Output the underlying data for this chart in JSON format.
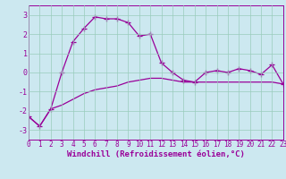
{
  "line1_x": [
    0,
    1,
    2,
    3,
    4,
    5,
    6,
    7,
    8,
    9,
    10,
    11,
    12,
    13,
    14,
    15,
    16,
    17,
    18,
    19,
    20,
    21,
    22,
    23
  ],
  "line1_y": [
    -2.3,
    -2.8,
    -1.9,
    0.0,
    1.6,
    2.3,
    2.9,
    2.8,
    2.8,
    2.6,
    1.9,
    2.0,
    0.5,
    0.0,
    -0.4,
    -0.5,
    0.0,
    0.1,
    0.0,
    0.2,
    0.1,
    -0.1,
    0.4,
    -0.6
  ],
  "line2_x": [
    0,
    1,
    2,
    3,
    4,
    5,
    6,
    7,
    8,
    9,
    10,
    11,
    12,
    13,
    14,
    15,
    16,
    17,
    18,
    19,
    20,
    21,
    22,
    23
  ],
  "line2_y": [
    -2.3,
    -2.8,
    -1.9,
    -1.7,
    -1.4,
    -1.1,
    -0.9,
    -0.8,
    -0.7,
    -0.5,
    -0.4,
    -0.3,
    -0.3,
    -0.4,
    -0.5,
    -0.5,
    -0.5,
    -0.5,
    -0.5,
    -0.5,
    -0.5,
    -0.5,
    -0.5,
    -0.6
  ],
  "line_color": "#990099",
  "marker": "+",
  "marker_size": 4,
  "xlabel": "Windchill (Refroidissement éolien,°C)",
  "ylim": [
    -3.5,
    3.5
  ],
  "xlim": [
    0,
    23
  ],
  "yticks": [
    -3,
    -2,
    -1,
    0,
    1,
    2,
    3
  ],
  "xticks": [
    0,
    1,
    2,
    3,
    4,
    5,
    6,
    7,
    8,
    9,
    10,
    11,
    12,
    13,
    14,
    15,
    16,
    17,
    18,
    19,
    20,
    21,
    22,
    23
  ],
  "background_color": "#cce8f0",
  "grid_color": "#99ccbb",
  "line_color2": "#990099",
  "tick_color": "#990099",
  "xlabel_fontsize": 6.5,
  "tick_fontsize": 5.5
}
